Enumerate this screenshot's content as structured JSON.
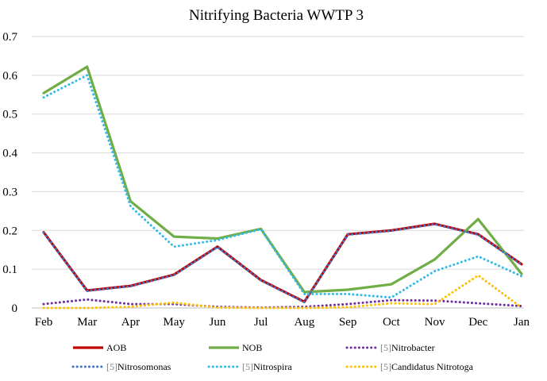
{
  "chart_data": {
    "type": "line",
    "title": "Nitrifying Bacteria WWTP 3",
    "xlabel": "",
    "ylabel": "",
    "categories": [
      "Feb",
      "Mar",
      "Apr",
      "May",
      "Jun",
      "Jul",
      "Aug",
      "Sep",
      "Oct",
      "Nov",
      "Dec",
      "Jan"
    ],
    "ylim": [
      0,
      0.7
    ],
    "yticks": [
      "0",
      "0.1",
      "0.2",
      "0.3",
      "0.4",
      "0.5",
      "0.6",
      "0.7"
    ],
    "grid": true,
    "legend_position": "bottom",
    "series": [
      {
        "name": "AOB",
        "ref": "",
        "color": "#c00000",
        "style": "solid",
        "values": [
          0.195,
          0.045,
          0.057,
          0.086,
          0.158,
          0.072,
          0.016,
          0.19,
          0.2,
          0.217,
          0.19,
          0.113
        ]
      },
      {
        "name": "NOB",
        "ref": "",
        "color": "#70ad47",
        "style": "solid",
        "values": [
          0.554,
          0.622,
          0.275,
          0.184,
          0.179,
          0.204,
          0.041,
          0.047,
          0.061,
          0.125,
          0.229,
          0.088
        ]
      },
      {
        "name": "Nitrobacter",
        "ref": "[5]",
        "color": "#7030a0",
        "style": "dotted",
        "values": [
          0.01,
          0.022,
          0.01,
          0.01,
          0.003,
          0.001,
          0.003,
          0.01,
          0.02,
          0.019,
          0.012,
          0.005
        ]
      },
      {
        "name": "Nitrosomonas",
        "ref": "[5]",
        "color": "#4472c4",
        "style": "dotted",
        "values": [
          0.194,
          0.044,
          0.056,
          0.085,
          0.157,
          0.071,
          0.015,
          0.189,
          0.199,
          0.216,
          0.189,
          0.112
        ]
      },
      {
        "name": "Nitrospira",
        "ref": "[5]",
        "color": "#33bbe8",
        "style": "dotted",
        "values": [
          0.543,
          0.6,
          0.262,
          0.158,
          0.175,
          0.203,
          0.036,
          0.036,
          0.027,
          0.095,
          0.133,
          0.082
        ]
      },
      {
        "name": "Candidatus Nitrotoga",
        "ref": "[5]",
        "color": "#ffc000",
        "style": "dotted",
        "values": [
          0.0,
          0.0,
          0.003,
          0.014,
          0.001,
          0.0,
          0.0,
          0.002,
          0.012,
          0.01,
          0.084,
          0.001
        ]
      }
    ]
  }
}
